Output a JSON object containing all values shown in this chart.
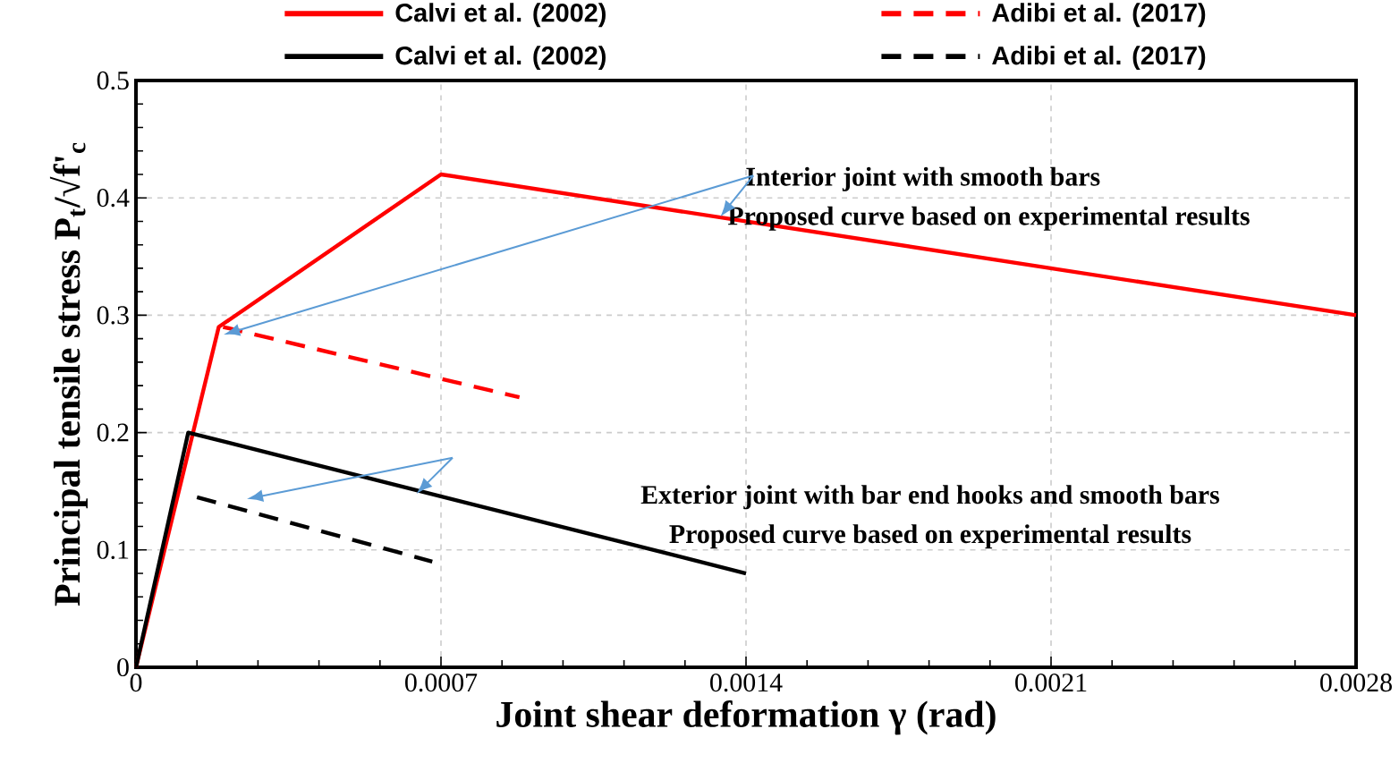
{
  "chart_data": {
    "type": "line",
    "xlabel": "Joint shear deformation γ (rad)",
    "ylabel": "Principal tensile stress P$_{t}$/√f'$_{c}$",
    "series": [
      {
        "name": "Calvi et al. (2002)",
        "color": "#ff0000",
        "line_style": "solid",
        "x": [
          0,
          0.00019,
          0.0007,
          0.0028
        ],
        "values": [
          0,
          0.29,
          0.42,
          0.3
        ]
      },
      {
        "name": "Adibi et al. (2017)",
        "color": "#ff0000",
        "line_style": "dashed",
        "x": [
          0.0002,
          0.00088
        ],
        "values": [
          0.29,
          0.23
        ]
      },
      {
        "name": "Calvi et al. (2002)",
        "color": "#000000",
        "line_style": "solid",
        "x": [
          0,
          0.00012,
          0.0014
        ],
        "values": [
          0,
          0.2,
          0.08
        ]
      },
      {
        "name": "Adibi et al. (2017)",
        "color": "#000000",
        "line_style": "dashed",
        "x": [
          0.00014,
          0.00068
        ],
        "values": [
          0.145,
          0.09
        ]
      }
    ],
    "xlim": [
      0,
      0.0028
    ],
    "ylim": [
      0,
      0.5
    ],
    "xticks": [
      0,
      0.0007,
      0.0014,
      0.0021,
      0.0028
    ],
    "yticks": [
      0,
      0.1,
      0.2,
      0.3,
      0.4,
      0.5
    ],
    "grid": true,
    "legend": "top",
    "marker": "none",
    "annotations": [
      "Interior joint with smooth bars",
      "Proposed curve based on experimental results",
      "Exterior joint with bar end hooks and smooth bars",
      "Proposed curve based on experimental results"
    ]
  }
}
